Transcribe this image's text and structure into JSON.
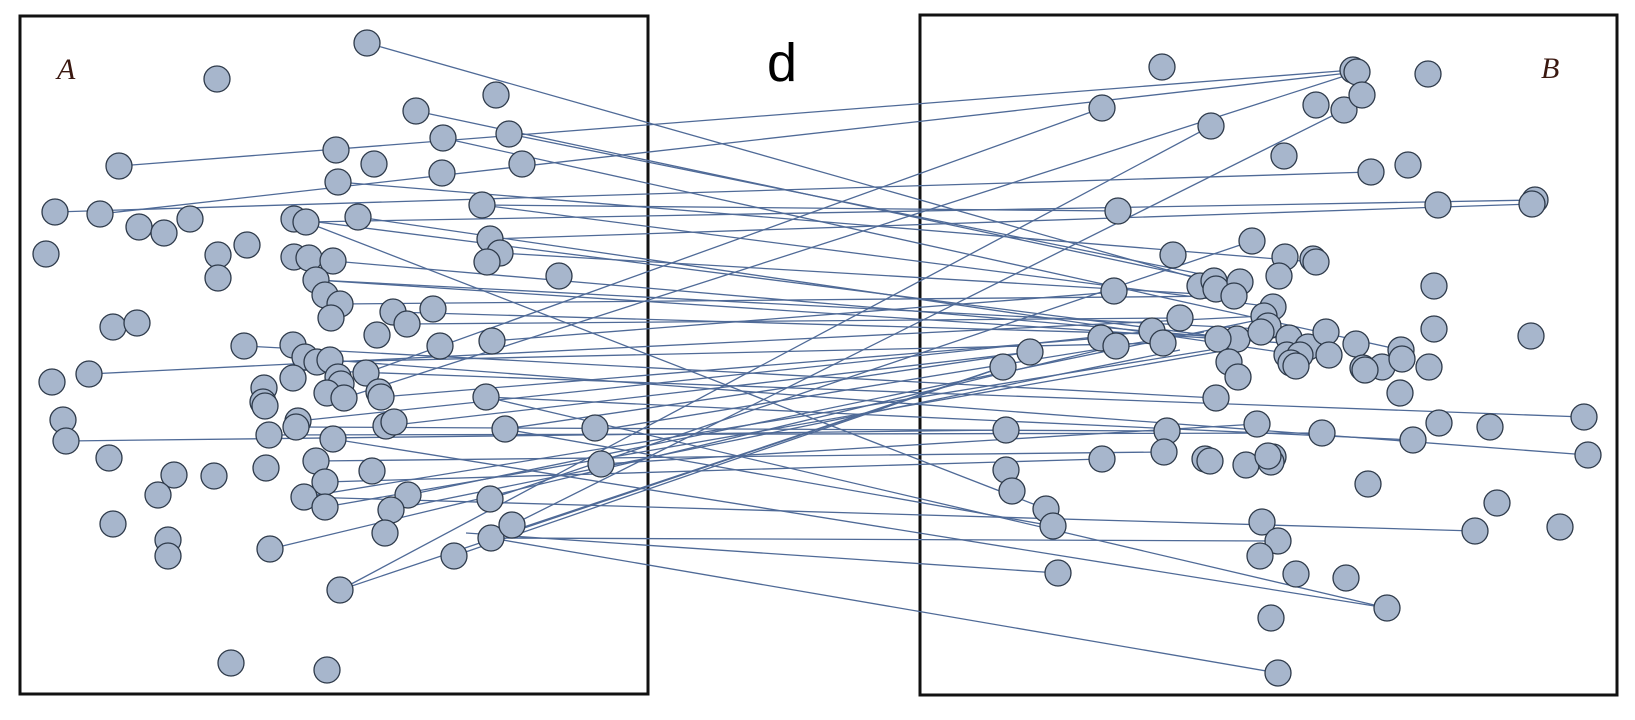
{
  "figure_label": "d",
  "panels": {
    "left": {
      "label": "A"
    },
    "right": {
      "label": "B"
    }
  },
  "colors": {
    "node_fill": "#a7b6cc",
    "node_stroke": "#2e3a4a",
    "edge": "#4f6a97",
    "frame": "#111111",
    "label": "#3a1810"
  }
}
